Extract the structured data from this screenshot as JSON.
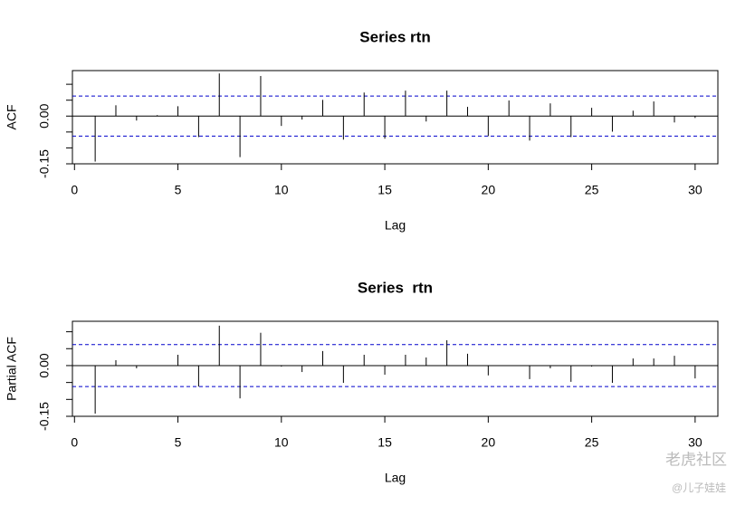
{
  "chart_data": [
    {
      "type": "bar",
      "title": "Series rtn",
      "xlabel": "Lag",
      "ylabel": "ACF",
      "x": [
        1,
        2,
        3,
        4,
        5,
        6,
        7,
        8,
        9,
        10,
        11,
        12,
        13,
        14,
        15,
        16,
        17,
        18,
        19,
        20,
        21,
        22,
        23,
        24,
        25,
        26,
        27,
        28,
        29,
        30
      ],
      "values": [
        -0.143,
        0.034,
        -0.014,
        0.003,
        0.031,
        -0.066,
        0.134,
        -0.129,
        0.126,
        -0.031,
        -0.011,
        0.051,
        -0.074,
        0.074,
        -0.071,
        0.08,
        -0.017,
        0.08,
        0.029,
        -0.063,
        0.049,
        -0.077,
        0.04,
        -0.066,
        0.026,
        -0.049,
        0.017,
        0.046,
        -0.02,
        -0.006
      ],
      "color": "#000000",
      "conf_limit": 0.063,
      "conf_color": "#0000cc",
      "xlim": [
        -0.1,
        31.1
      ],
      "xticks": [
        0,
        5,
        10,
        15,
        20,
        25,
        30
      ],
      "ylim": [
        -0.15,
        0.143
      ],
      "yticks": [
        {
          "value": -0.15,
          "label": "-0.15"
        },
        {
          "value": -0.1,
          "label": null
        },
        {
          "value": -0.05,
          "label": null
        },
        {
          "value": 0,
          "label": "0.00"
        },
        {
          "value": 0.05,
          "label": null
        },
        {
          "value": 0.1,
          "label": null
        }
      ]
    },
    {
      "type": "bar",
      "title": "Series  rtn",
      "xlabel": "Lag",
      "ylabel": "Partial ACF",
      "x": [
        1,
        2,
        3,
        4,
        5,
        6,
        7,
        8,
        9,
        10,
        11,
        12,
        13,
        14,
        15,
        16,
        17,
        18,
        19,
        20,
        21,
        22,
        23,
        24,
        25,
        26,
        27,
        28,
        29,
        30
      ],
      "values": [
        -0.142,
        0.016,
        -0.008,
        0.001,
        0.032,
        -0.062,
        0.118,
        -0.097,
        0.097,
        -0.003,
        -0.019,
        0.043,
        -0.051,
        0.032,
        -0.027,
        0.032,
        0.024,
        0.075,
        0.035,
        -0.029,
        0.001,
        -0.04,
        -0.008,
        -0.048,
        -0.003,
        -0.051,
        0.021,
        0.021,
        0.029,
        -0.038
      ],
      "color": "#000000",
      "conf_limit": 0.062,
      "conf_color": "#0000cc",
      "xlim": [
        -0.1,
        31.1
      ],
      "xticks": [
        0,
        5,
        10,
        15,
        20,
        25,
        30
      ],
      "ylim": [
        -0.15,
        0.131
      ],
      "yticks": [
        {
          "value": -0.15,
          "label": "-0.15"
        },
        {
          "value": -0.1,
          "label": null
        },
        {
          "value": -0.05,
          "label": null
        },
        {
          "value": 0,
          "label": "0.00"
        },
        {
          "value": 0.05,
          "label": null
        },
        {
          "value": 0.1,
          "label": null
        }
      ]
    }
  ],
  "watermark": {
    "name": "老虎社区",
    "user": "@儿子娃娃"
  }
}
